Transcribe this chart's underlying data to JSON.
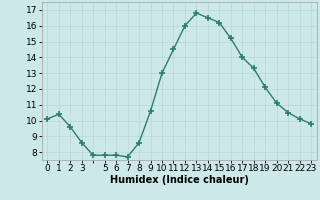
{
  "x": [
    0,
    1,
    2,
    3,
    4,
    5,
    6,
    7,
    8,
    9,
    10,
    11,
    12,
    13,
    14,
    15,
    16,
    17,
    18,
    19,
    20,
    21,
    22,
    23
  ],
  "y": [
    10.1,
    10.4,
    9.6,
    8.6,
    7.8,
    7.8,
    7.8,
    7.7,
    8.6,
    10.6,
    13.0,
    14.5,
    16.0,
    16.8,
    16.5,
    16.2,
    15.2,
    14.0,
    13.3,
    12.1,
    11.1,
    10.5,
    10.1,
    9.8
  ],
  "line_color": "#2d7d6e",
  "marker": "+",
  "marker_size": 4,
  "line_width": 1.0,
  "bg_color": "#cce8e8",
  "grid_color": "#b8d8d8",
  "xlabel": "Humidex (Indice chaleur)",
  "ylim": [
    7.5,
    17.5
  ],
  "xlim": [
    -0.5,
    23.5
  ],
  "yticks": [
    8,
    9,
    10,
    11,
    12,
    13,
    14,
    15,
    16,
    17
  ],
  "xtick_labels": [
    "0",
    "1",
    "2",
    "3",
    "",
    "5",
    "6",
    "7",
    "8",
    "9",
    "10",
    "11",
    "12",
    "13",
    "14",
    "15",
    "16",
    "17",
    "18",
    "19",
    "20",
    "21",
    "22",
    "23"
  ],
  "xlabel_fontsize": 7,
  "tick_fontsize": 6.5,
  "grid_linewidth": 0.5,
  "spine_color": "#aaaaaa"
}
